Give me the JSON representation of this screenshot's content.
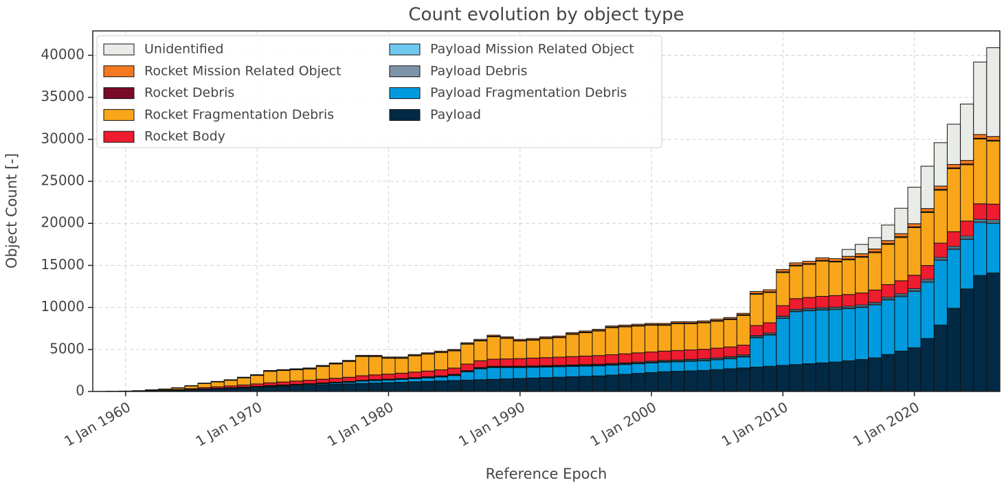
{
  "chart_data": {
    "type": "stacked_bar",
    "title": "Count evolution by object type",
    "xlabel": "Reference Epoch",
    "ylabel": "Object Count [-]",
    "x": [
      1958,
      1959,
      1960,
      1961,
      1962,
      1963,
      1964,
      1965,
      1966,
      1967,
      1968,
      1969,
      1970,
      1971,
      1972,
      1973,
      1974,
      1975,
      1976,
      1977,
      1978,
      1979,
      1980,
      1981,
      1982,
      1983,
      1984,
      1985,
      1986,
      1987,
      1988,
      1989,
      1990,
      1991,
      1992,
      1993,
      1994,
      1995,
      1996,
      1997,
      1998,
      1999,
      2000,
      2001,
      2002,
      2003,
      2004,
      2005,
      2006,
      2007,
      2008,
      2009,
      2010,
      2011,
      2012,
      2013,
      2014,
      2015,
      2016,
      2017,
      2018,
      2019,
      2020,
      2021,
      2022,
      2023,
      2024,
      2025,
      2026
    ],
    "xlim": [
      1957.5,
      2026.5
    ],
    "xticks": [
      {
        "value": 1960,
        "label": "1 Jan 1960"
      },
      {
        "value": 1970,
        "label": "1 Jan 1970"
      },
      {
        "value": 1980,
        "label": "1 Jan 1980"
      },
      {
        "value": 1990,
        "label": "1 Jan 1990"
      },
      {
        "value": 2000,
        "label": "1 Jan 2000"
      },
      {
        "value": 2010,
        "label": "1 Jan 2010"
      },
      {
        "value": 2020,
        "label": "1 Jan 2020"
      }
    ],
    "ylim": [
      0,
      42900
    ],
    "yticks": [
      0,
      5000,
      10000,
      15000,
      20000,
      25000,
      30000,
      35000,
      40000
    ],
    "grid": true,
    "legend": "upper left",
    "series": [
      {
        "name": "Payload",
        "color": "#022a44",
        "values": [
          3,
          8,
          15,
          30,
          60,
          90,
          130,
          190,
          250,
          300,
          360,
          420,
          500,
          560,
          620,
          680,
          740,
          800,
          850,
          900,
          950,
          1000,
          1050,
          1100,
          1150,
          1200,
          1250,
          1300,
          1350,
          1400,
          1450,
          1500,
          1550,
          1600,
          1650,
          1700,
          1750,
          1800,
          1850,
          1950,
          2050,
          2150,
          2250,
          2350,
          2400,
          2450,
          2500,
          2600,
          2700,
          2800,
          2900,
          3000,
          3100,
          3200,
          3300,
          3400,
          3500,
          3650,
          3800,
          4000,
          4400,
          4800,
          5200,
          6300,
          7900,
          9900,
          12200,
          13800,
          14100
        ]
      },
      {
        "name": "Payload Fragmentation Debris",
        "color": "#009bde",
        "values": [
          0,
          0,
          0,
          0,
          0,
          0,
          5,
          10,
          20,
          30,
          40,
          50,
          60,
          80,
          90,
          100,
          110,
          130,
          160,
          190,
          280,
          300,
          310,
          330,
          380,
          420,
          480,
          600,
          1000,
          1300,
          1400,
          1350,
          1300,
          1280,
          1260,
          1240,
          1230,
          1220,
          1200,
          1180,
          1160,
          1150,
          1140,
          1130,
          1130,
          1140,
          1150,
          1170,
          1200,
          1300,
          3500,
          3700,
          5600,
          6300,
          6300,
          6300,
          6250,
          6200,
          6200,
          6300,
          6500,
          6500,
          6700,
          6700,
          7700,
          7000,
          5900,
          6300,
          5900
        ]
      },
      {
        "name": "Payload Debris",
        "color": "#7d93a8",
        "values": [
          0,
          0,
          0,
          0,
          0,
          5,
          5,
          10,
          10,
          15,
          15,
          20,
          20,
          25,
          25,
          30,
          30,
          35,
          35,
          40,
          40,
          45,
          45,
          50,
          50,
          55,
          55,
          60,
          60,
          65,
          70,
          70,
          75,
          75,
          80,
          80,
          85,
          85,
          90,
          90,
          95,
          95,
          100,
          100,
          105,
          105,
          110,
          110,
          115,
          115,
          120,
          120,
          125,
          125,
          130,
          130,
          135,
          135,
          140,
          140,
          145,
          150,
          155,
          160,
          165,
          170,
          175,
          180,
          185
        ]
      },
      {
        "name": "Payload Mission Related Object",
        "color": "#6ec8f0",
        "values": [
          0,
          2,
          5,
          5,
          10,
          10,
          15,
          20,
          30,
          30,
          35,
          40,
          40,
          45,
          45,
          50,
          50,
          55,
          55,
          60,
          60,
          60,
          60,
          65,
          65,
          70,
          70,
          75,
          75,
          80,
          80,
          85,
          85,
          90,
          90,
          95,
          95,
          100,
          100,
          105,
          105,
          110,
          110,
          115,
          115,
          120,
          120,
          125,
          125,
          130,
          130,
          135,
          140,
          140,
          145,
          145,
          150,
          150,
          155,
          160,
          165,
          170,
          175,
          180,
          185,
          190,
          195,
          200,
          205
        ]
      },
      {
        "name": "Rocket Body",
        "color": "#ee1c2e",
        "values": [
          2,
          8,
          15,
          25,
          40,
          60,
          80,
          110,
          150,
          180,
          210,
          240,
          280,
          320,
          350,
          380,
          410,
          440,
          470,
          500,
          540,
          570,
          600,
          630,
          660,
          690,
          720,
          750,
          780,
          810,
          840,
          870,
          900,
          930,
          950,
          970,
          990,
          1010,
          1030,
          1050,
          1070,
          1090,
          1100,
          1110,
          1120,
          1130,
          1140,
          1150,
          1160,
          1170,
          1200,
          1220,
          1250,
          1280,
          1310,
          1340,
          1370,
          1400,
          1430,
          1470,
          1510,
          1550,
          1600,
          1650,
          1700,
          1750,
          1800,
          1850,
          1900
        ]
      },
      {
        "name": "Rocket Fragmentation Debris",
        "color": "#f9a61a",
        "values": [
          0,
          0,
          10,
          30,
          70,
          110,
          180,
          310,
          480,
          580,
          670,
          850,
          1010,
          1370,
          1360,
          1345,
          1340,
          1515,
          1700,
          1880,
          2290,
          2180,
          1890,
          1775,
          1940,
          2010,
          2065,
          2050,
          2365,
          2370,
          2680,
          2445,
          2105,
          2135,
          2275,
          2320,
          2650,
          2780,
          2920,
          3215,
          3205,
          3190,
          3180,
          3070,
          3200,
          3125,
          3145,
          3205,
          3255,
          3535,
          3720,
          3595,
          3935,
          3895,
          3940,
          4200,
          4000,
          4135,
          4245,
          4450,
          4790,
          5150,
          5665,
          6300,
          6300,
          7500,
          6700,
          7700,
          7500
        ]
      },
      {
        "name": "Rocket Debris",
        "color": "#7a0a2a",
        "values": [
          0,
          0,
          0,
          0,
          0,
          5,
          5,
          10,
          10,
          15,
          15,
          20,
          25,
          30,
          35,
          35,
          35,
          40,
          40,
          40,
          45,
          45,
          45,
          50,
          50,
          50,
          50,
          55,
          55,
          60,
          60,
          60,
          60,
          65,
          65,
          65,
          65,
          70,
          70,
          70,
          70,
          70,
          70,
          75,
          75,
          75,
          75,
          80,
          80,
          80,
          80,
          80,
          85,
          85,
          85,
          85,
          85,
          90,
          90,
          90,
          90,
          95,
          95,
          95,
          100,
          100,
          100,
          100,
          100
        ]
      },
      {
        "name": "Rocket Mission Related Object",
        "color": "#f47920",
        "values": [
          0,
          2,
          5,
          10,
          20,
          20,
          30,
          40,
          50,
          50,
          55,
          60,
          65,
          70,
          75,
          80,
          85,
          85,
          90,
          90,
          95,
          100,
          100,
          100,
          105,
          105,
          110,
          110,
          115,
          115,
          120,
          120,
          125,
          125,
          130,
          130,
          135,
          135,
          140,
          140,
          145,
          145,
          150,
          150,
          155,
          155,
          160,
          160,
          165,
          170,
          250,
          250,
          265,
          275,
          290,
          300,
          310,
          320,
          330,
          340,
          350,
          360,
          370,
          380,
          390,
          400,
          420,
          440,
          450
        ]
      },
      {
        "name": "Unidentified",
        "color": "#e8ebe6",
        "values": [
          0,
          0,
          0,
          0,
          0,
          0,
          0,
          0,
          0,
          0,
          0,
          0,
          0,
          0,
          0,
          0,
          0,
          0,
          0,
          0,
          0,
          0,
          0,
          0,
          0,
          0,
          0,
          0,
          0,
          0,
          0,
          0,
          0,
          0,
          0,
          0,
          0,
          0,
          0,
          0,
          0,
          0,
          0,
          0,
          0,
          0,
          0,
          0,
          0,
          0,
          0,
          0,
          0,
          0,
          0,
          0,
          0,
          820,
          1110,
          1350,
          1850,
          3025,
          4340,
          5035,
          5160,
          4790,
          6710,
          8630,
          10560
        ]
      }
    ]
  }
}
